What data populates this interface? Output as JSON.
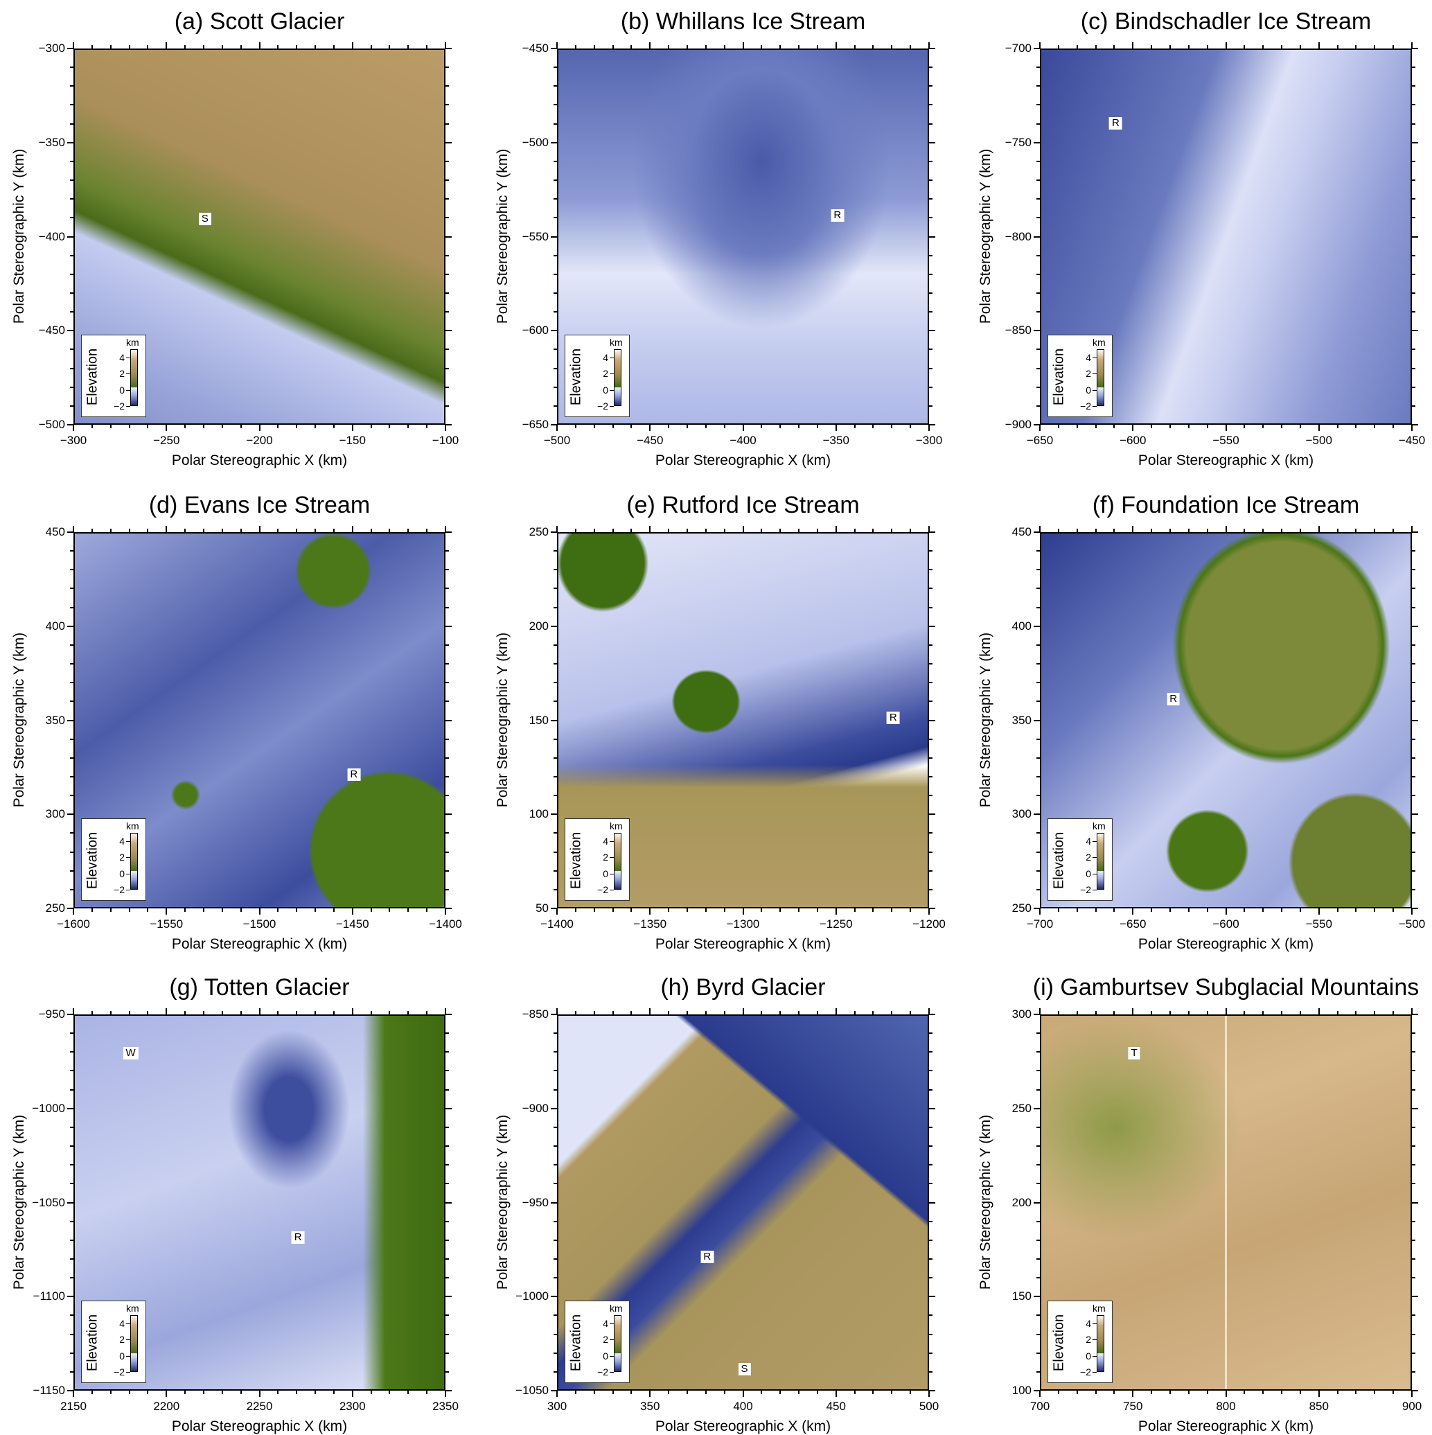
{
  "figure": {
    "surface_colormap": {
      "ice": "#8d9bd5",
      "low_land": "#4c7819",
      "high_land": "#c9a878"
    },
    "panels": [
      {
        "title": "(a) Scott Glacier",
        "xlabel": "Polar Stereographic X (km)",
        "ylabel": "Polar Stereographic Y (km)",
        "xlim": [
          -300,
          -100
        ],
        "ylim": [
          -500,
          -300
        ],
        "xticks": [
          -300,
          -250,
          -200,
          -150,
          -100
        ],
        "yticks": [
          -500,
          -450,
          -400,
          -350,
          -300
        ],
        "markers": [
          {
            "label": "S",
            "x": -230,
            "y": -390
          }
        ],
        "colorbar": {
          "label": "Elevation",
          "unit": "km",
          "ticks": [
            4,
            2,
            0,
            -2
          ],
          "range": [
            -2,
            5
          ]
        }
      },
      {
        "title": "(b) Whillans Ice Stream",
        "xlabel": "Polar Stereographic X (km)",
        "ylabel": "Polar Stereographic Y (km)",
        "xlim": [
          -500,
          -300
        ],
        "ylim": [
          -650,
          -450
        ],
        "xticks": [
          -500,
          -450,
          -400,
          -350,
          -300
        ],
        "yticks": [
          -650,
          -600,
          -550,
          -500,
          -450
        ],
        "markers": [
          {
            "label": "R",
            "x": -350,
            "y": -538
          }
        ],
        "colorbar": {
          "label": "Elevation",
          "unit": "km",
          "ticks": [
            4,
            2,
            0,
            -2
          ],
          "range": [
            -2,
            5
          ]
        }
      },
      {
        "title": "(c) Bindschadler Ice Stream",
        "xlabel": "Polar Stereographic X (km)",
        "ylabel": "Polar Stereographic Y (km)",
        "xlim": [
          -650,
          -450
        ],
        "ylim": [
          -900,
          -700
        ],
        "xticks": [
          -650,
          -600,
          -550,
          -500,
          -450
        ],
        "yticks": [
          -900,
          -850,
          -800,
          -750,
          -700
        ],
        "markers": [
          {
            "label": "R",
            "x": -610,
            "y": -739
          }
        ],
        "colorbar": {
          "label": "Elevation",
          "unit": "km",
          "ticks": [
            4,
            2,
            0,
            -2
          ],
          "range": [
            -2,
            5
          ]
        }
      },
      {
        "title": "(d) Evans Ice Stream",
        "xlabel": "Polar Stereographic X (km)",
        "ylabel": "Polar Stereographic Y (km)",
        "xlim": [
          -1600,
          -1400
        ],
        "ylim": [
          250,
          450
        ],
        "xticks": [
          -1600,
          -1550,
          -1500,
          -1450,
          -1400
        ],
        "yticks": [
          250,
          300,
          350,
          400,
          450
        ],
        "markers": [
          {
            "label": "R",
            "x": -1450,
            "y": 322
          }
        ],
        "colorbar": {
          "label": "Elevation",
          "unit": "km",
          "ticks": [
            4,
            2,
            0,
            -2
          ],
          "range": [
            -2,
            5
          ]
        }
      },
      {
        "title": "(e) Rutford Ice Stream",
        "xlabel": "Polar Stereographic X (km)",
        "ylabel": "Polar Stereographic Y (km)",
        "xlim": [
          -1400,
          -1200
        ],
        "ylim": [
          50,
          250
        ],
        "xticks": [
          -1400,
          -1350,
          -1300,
          -1250,
          -1200
        ],
        "yticks": [
          50,
          100,
          150,
          200,
          250
        ],
        "markers": [
          {
            "label": "R",
            "x": -1220,
            "y": 152
          }
        ],
        "colorbar": {
          "label": "Elevation",
          "unit": "km",
          "ticks": [
            4,
            2,
            0,
            -2
          ],
          "range": [
            -2,
            5
          ]
        }
      },
      {
        "title": "(f) Foundation Ice Stream",
        "xlabel": "Polar Stereographic X (km)",
        "ylabel": "Polar Stereographic Y (km)",
        "xlim": [
          -700,
          -500
        ],
        "ylim": [
          250,
          450
        ],
        "xticks": [
          -700,
          -650,
          -600,
          -550,
          -500
        ],
        "yticks": [
          250,
          300,
          350,
          400,
          450
        ],
        "markers": [
          {
            "label": "R",
            "x": -629,
            "y": 362
          }
        ],
        "colorbar": {
          "label": "Elevation",
          "unit": "km",
          "ticks": [
            4,
            2,
            0,
            -2
          ],
          "range": [
            -2,
            5
          ]
        }
      },
      {
        "title": "(g) Totten Glacier",
        "xlabel": "Polar Stereographic X (km)",
        "ylabel": "Polar Stereographic Y (km)",
        "xlim": [
          2150,
          2350
        ],
        "ylim": [
          -1150,
          -950
        ],
        "xticks": [
          2150,
          2200,
          2250,
          2300,
          2350
        ],
        "yticks": [
          -1150,
          -1100,
          -1050,
          -1000,
          -950
        ],
        "markers": [
          {
            "label": "W",
            "x": 2180,
            "y": -970
          },
          {
            "label": "R",
            "x": 2270,
            "y": -1068
          }
        ],
        "colorbar": {
          "label": "Elevation",
          "unit": "km",
          "ticks": [
            4,
            2,
            0,
            -2
          ],
          "range": [
            -2,
            5
          ]
        }
      },
      {
        "title": "(h) Byrd Glacier",
        "xlabel": "Polar Stereographic X (km)",
        "ylabel": "Polar Stereographic Y (km)",
        "xlim": [
          300,
          500
        ],
        "ylim": [
          -1050,
          -850
        ],
        "xticks": [
          300,
          350,
          400,
          450,
          500
        ],
        "yticks": [
          -1050,
          -1000,
          -950,
          -900,
          -850
        ],
        "markers": [
          {
            "label": "R",
            "x": 380,
            "y": -978
          },
          {
            "label": "S",
            "x": 400,
            "y": -1038
          }
        ],
        "colorbar": {
          "label": "Elevation",
          "unit": "km",
          "ticks": [
            4,
            2,
            0,
            -2
          ],
          "range": [
            -2,
            5
          ]
        }
      },
      {
        "title": "(i) Gamburtsev Subglacial Mountains",
        "xlabel": "Polar Stereographic X (km)",
        "ylabel": "Polar Stereographic Y (km)",
        "xlim": [
          700,
          900
        ],
        "ylim": [
          100,
          300
        ],
        "xticks": [
          700,
          750,
          800,
          850,
          900
        ],
        "yticks": [
          100,
          150,
          200,
          250,
          300
        ],
        "markers": [
          {
            "label": "T",
            "x": 750,
            "y": 280
          }
        ],
        "colorbar": {
          "label": "Elevation",
          "unit": "km",
          "ticks": [
            4,
            2,
            0,
            -2
          ],
          "range": [
            -2,
            5
          ]
        }
      }
    ]
  }
}
